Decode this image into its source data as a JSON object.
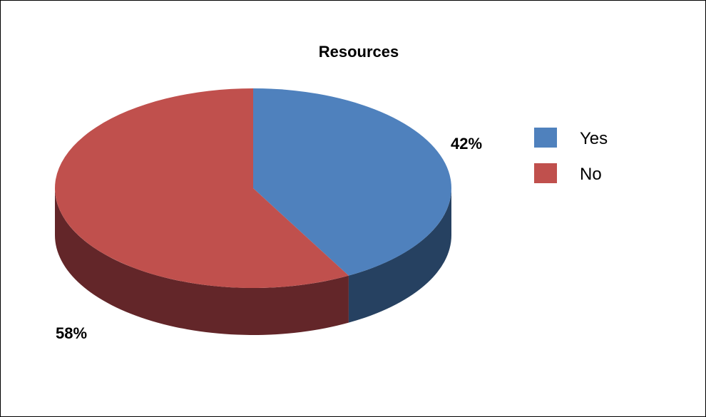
{
  "chart_data": {
    "type": "pie",
    "title": "Resources",
    "categories": [
      "Yes",
      "No"
    ],
    "values": [
      42,
      58
    ],
    "value_labels": [
      "42%",
      "58%"
    ],
    "colors": [
      "#4F81BD",
      "#C0504D"
    ],
    "side_colors": [
      "#264161",
      "#632629"
    ],
    "legend_position": "right",
    "style": "3d"
  }
}
